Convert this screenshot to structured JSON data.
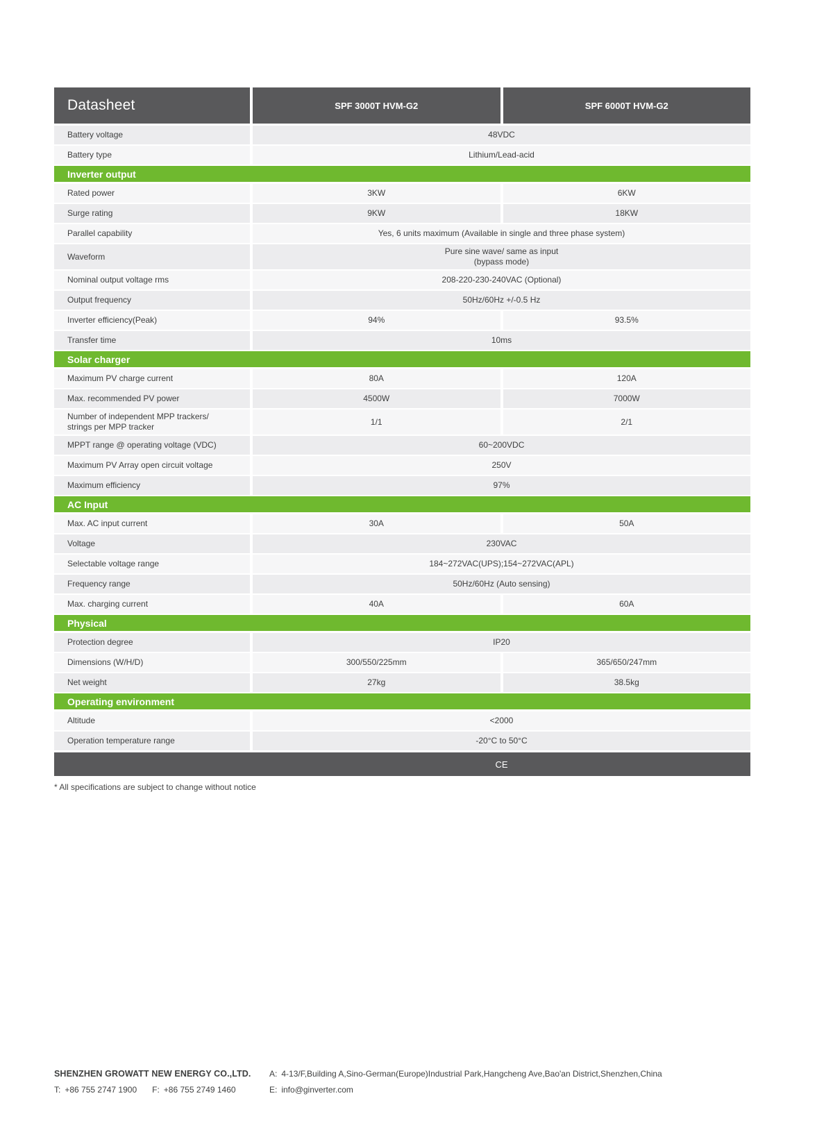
{
  "table": {
    "title": "Datasheet",
    "columns": [
      "SPF 3000T HVM-G2",
      "SPF 6000T HVM-G2"
    ],
    "rows": [
      {
        "type": "data",
        "alt": true,
        "label": "Battery voltage",
        "span": "48VDC"
      },
      {
        "type": "data",
        "alt": false,
        "label": "Battery type",
        "span": "Lithium/Lead-acid"
      },
      {
        "type": "section",
        "label": "Inverter output"
      },
      {
        "type": "data",
        "alt": false,
        "label": "Rated power",
        "v1": "3KW",
        "v2": "6KW"
      },
      {
        "type": "data",
        "alt": true,
        "label": "Surge rating",
        "v1": "9KW",
        "v2": "18KW"
      },
      {
        "type": "data",
        "alt": false,
        "label": "Parallel capability",
        "span": "Yes, 6 units maximum (Available in single and three phase system)"
      },
      {
        "type": "data",
        "alt": true,
        "label": "Waveform",
        "span": "Pure sine wave/ same as input\n(bypass mode)"
      },
      {
        "type": "data",
        "alt": false,
        "label": "Nominal output voltage rms",
        "span": "208-220-230-240VAC (Optional)"
      },
      {
        "type": "data",
        "alt": true,
        "label": "Output frequency",
        "span": "50Hz/60Hz +/-0.5 Hz"
      },
      {
        "type": "data",
        "alt": false,
        "label": "Inverter efficiency(Peak)",
        "v1": "94%",
        "v2": "93.5%"
      },
      {
        "type": "data",
        "alt": true,
        "label": "Transfer time",
        "span": "10ms"
      },
      {
        "type": "section",
        "label": "Solar charger"
      },
      {
        "type": "data",
        "alt": false,
        "label": "Maximum PV charge current",
        "v1": "80A",
        "v2": "120A"
      },
      {
        "type": "data",
        "alt": true,
        "label": "Max. recommended PV power",
        "v1": "4500W",
        "v2": "7000W"
      },
      {
        "type": "data",
        "alt": false,
        "label": "Number of independent MPP trackers/\nstrings per MPP tracker",
        "v1": "1/1",
        "v2": "2/1"
      },
      {
        "type": "data",
        "alt": true,
        "label": "MPPT range @ operating voltage (VDC)",
        "span": "60~200VDC"
      },
      {
        "type": "data",
        "alt": false,
        "label": "Maximum PV Array open circuit voltage",
        "span": "250V"
      },
      {
        "type": "data",
        "alt": true,
        "label": "Maximum efficiency",
        "span": "97%"
      },
      {
        "type": "section",
        "label": "AC Input"
      },
      {
        "type": "data",
        "alt": false,
        "label": "Max. AC input current",
        "v1": "30A",
        "v2": "50A"
      },
      {
        "type": "data",
        "alt": true,
        "label": "Voltage",
        "span": "230VAC"
      },
      {
        "type": "data",
        "alt": false,
        "label": "Selectable voltage range",
        "span": "184~272VAC(UPS);154~272VAC(APL)"
      },
      {
        "type": "data",
        "alt": true,
        "label": "Frequency range",
        "span": "50Hz/60Hz (Auto sensing)"
      },
      {
        "type": "data",
        "alt": false,
        "label": "Max. charging current",
        "v1": "40A",
        "v2": "60A"
      },
      {
        "type": "section",
        "label": "Physical"
      },
      {
        "type": "data",
        "alt": true,
        "label": "Protection degree",
        "span": "IP20"
      },
      {
        "type": "data",
        "alt": false,
        "label": "Dimensions (W/H/D)",
        "v1": "300/550/225mm",
        "v2": "365/650/247mm"
      },
      {
        "type": "data",
        "alt": true,
        "label": "Net weight",
        "v1": "27kg",
        "v2": "38.5kg"
      },
      {
        "type": "section",
        "label": "Operating environment"
      },
      {
        "type": "data",
        "alt": false,
        "label": "Altitude",
        "span": "<2000"
      },
      {
        "type": "data",
        "alt": true,
        "label": "Operation temperature range",
        "span": "-20°C to 50°C"
      },
      {
        "type": "cert",
        "label": "CE"
      }
    ],
    "footnote": "* All specifications are subject to change without notice"
  },
  "company": {
    "name": "SHENZHEN GROWATT NEW ENERGY CO.,LTD.",
    "tel_label": "T:",
    "tel": "+86 755 2747 1900",
    "fax_label": "F:",
    "fax": "+86 755 2749 1460",
    "address_label": "A:",
    "address": "4-13/F,Building A,Sino-German(Europe)Industrial Park,Hangcheng Ave,Bao'an District,Shenzhen,China",
    "email_label": "E:",
    "email": "info@ginverter.com"
  },
  "colors": {
    "accent_green": "#6fb92f",
    "header_gray": "#59595b",
    "row_light": "#f6f6f7",
    "row_alt": "#ececee"
  }
}
